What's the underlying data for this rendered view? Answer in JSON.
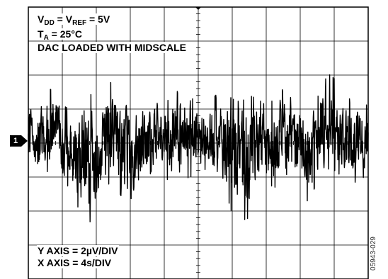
{
  "annotations": {
    "vdd": {
      "a": "V",
      "a_sub": "DD",
      "b": " = V",
      "b_sub": "REF",
      "c": " = 5V"
    },
    "ta": {
      "a": "T",
      "a_sub": "A",
      "b": " = 25°C"
    },
    "load": "DAC LOADED WITH MIDSCALE",
    "y_axis": "Y AXIS = 2µV/DIV",
    "x_axis": "X AXIS = 4s/DIV"
  },
  "channel_marker": "1",
  "figure_id": "05943-029",
  "colors": {
    "trace": "#000000",
    "grid": "#000000",
    "background": "#ffffff"
  },
  "chart_data": {
    "type": "line",
    "title": "",
    "xlabel": "",
    "ylabel": "",
    "x_units": "s",
    "y_units": "µV",
    "xlim": [
      0,
      40
    ],
    "ylim": [
      -8,
      8
    ],
    "x_per_div": 4,
    "y_per_div": 2,
    "divisions": {
      "x": 10,
      "y": 8
    },
    "grid": true,
    "reference_level": 0,
    "series": [
      {
        "name": "",
        "x": [
          0,
          1,
          2,
          3,
          4,
          5,
          6,
          7,
          8,
          9,
          10,
          11,
          12,
          13,
          14,
          15,
          16,
          17,
          18,
          19,
          20,
          21,
          22,
          23,
          24,
          25,
          26,
          27,
          28,
          29,
          30,
          31,
          32,
          33,
          34,
          35,
          36,
          37,
          38,
          39,
          40
        ],
        "y_min": [
          -1.2,
          -2.3,
          -1.8,
          -1.3,
          -2.4,
          -2.6,
          -4.0,
          -4.8,
          -4.2,
          -2.6,
          -2.2,
          -3.2,
          -4.1,
          -2.6,
          -2.0,
          -1.5,
          -2.0,
          -2.4,
          -2.2,
          -2.0,
          -1.8,
          -1.5,
          -2.5,
          -2.4,
          -4.2,
          -4.6,
          -4.4,
          -3.2,
          -2.4,
          -2.6,
          -2.6,
          -2.6,
          -2.4,
          -3.6,
          -2.2,
          -1.5,
          -1.6,
          -2.0,
          -2.4,
          -2.2,
          -1.8
        ],
        "y_max": [
          2.6,
          2.4,
          2.8,
          3.4,
          2.2,
          2.0,
          2.4,
          3.0,
          2.6,
          3.0,
          3.8,
          2.6,
          2.4,
          2.6,
          2.2,
          2.8,
          2.6,
          2.4,
          3.6,
          2.8,
          2.2,
          2.0,
          2.8,
          3.0,
          2.6,
          2.4,
          2.8,
          2.6,
          2.2,
          2.6,
          3.2,
          2.6,
          2.4,
          2.4,
          2.6,
          4.2,
          3.8,
          2.6,
          2.6,
          2.4,
          2.2
        ],
        "trace_density": 1200,
        "seed": 5943
      }
    ]
  }
}
